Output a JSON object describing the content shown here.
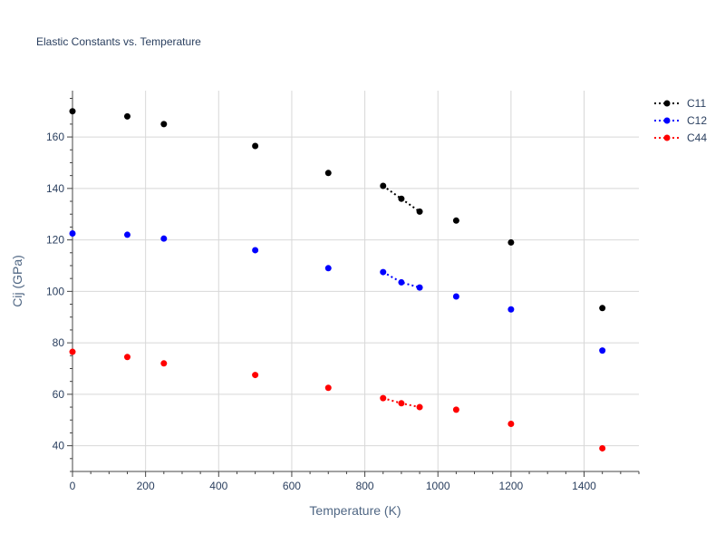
{
  "chart_data": {
    "type": "scatter",
    "title": "Elastic Constants vs. Temperature",
    "xlabel": "Temperature (K)",
    "ylabel": "Cij (GPa)",
    "xlim": [
      0,
      1550
    ],
    "ylim": [
      30,
      178
    ],
    "x_ticks": [
      0,
      200,
      400,
      600,
      800,
      1000,
      1200,
      1400
    ],
    "y_ticks": [
      40,
      60,
      80,
      100,
      120,
      140,
      160
    ],
    "x_tick_labels": [
      "0",
      "200",
      "400",
      "600",
      "800",
      "1000",
      "1200",
      "1400"
    ],
    "y_tick_labels": [
      "40",
      "60",
      "80",
      "100",
      "120",
      "140",
      "160"
    ],
    "x_minor_step": 50,
    "y_minor_step": 5,
    "grid": true,
    "legend_position": "top-right",
    "series": [
      {
        "name": "C11",
        "color": "#000000",
        "x": [
          0,
          150,
          250,
          500,
          700,
          850,
          900,
          950,
          1050,
          1200,
          1450
        ],
        "y": [
          170,
          168,
          165,
          156.5,
          146,
          141,
          136,
          131,
          127.5,
          119,
          93.5
        ],
        "connected_x": [
          850,
          900,
          950
        ]
      },
      {
        "name": "C12",
        "color": "#0000ff",
        "x": [
          0,
          150,
          250,
          500,
          700,
          850,
          900,
          950,
          1050,
          1200,
          1450
        ],
        "y": [
          122.5,
          122,
          120.5,
          116,
          109,
          107.5,
          103.5,
          101.5,
          98,
          93,
          77
        ],
        "connected_x": [
          850,
          900,
          950
        ]
      },
      {
        "name": "C44",
        "color": "#ff0000",
        "x": [
          0,
          150,
          250,
          500,
          700,
          850,
          900,
          950,
          1050,
          1200,
          1450
        ],
        "y": [
          76.5,
          74.5,
          72,
          67.5,
          62.5,
          58.5,
          56.5,
          55,
          54,
          48.5,
          39
        ],
        "connected_x": [
          850,
          900,
          950
        ]
      }
    ]
  }
}
